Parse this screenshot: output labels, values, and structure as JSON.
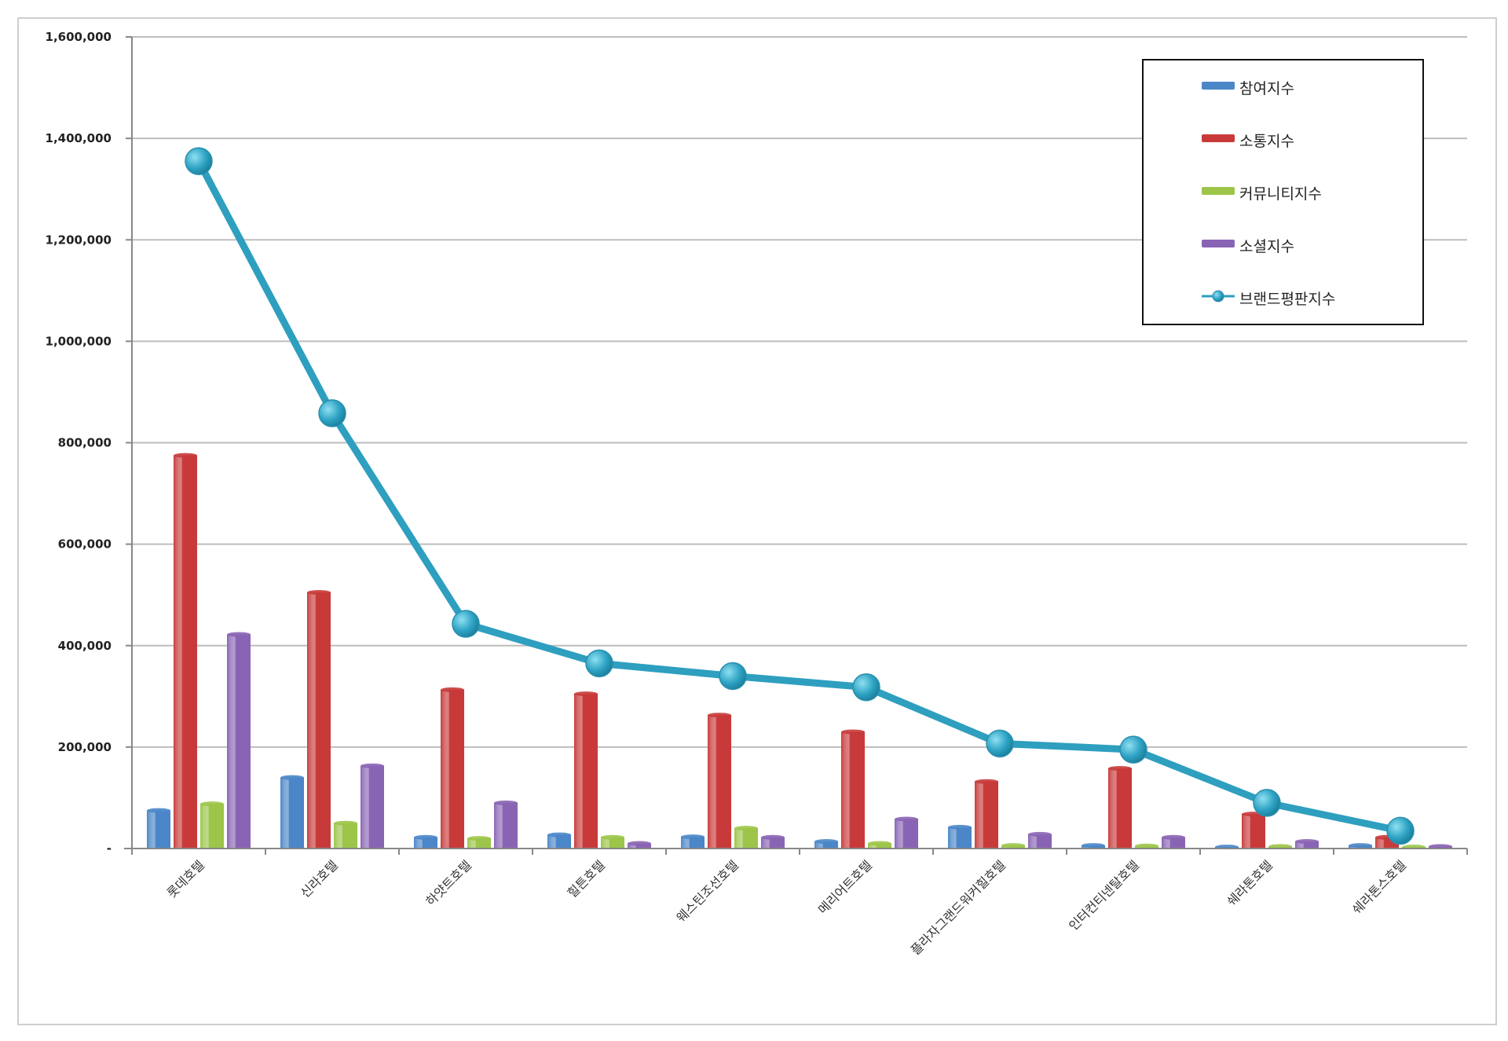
{
  "chart_data": {
    "type": "bar",
    "categories": [
      "롯데호텔",
      "신라호텔",
      "하얏트호텔",
      "힐튼호텔",
      "웨스틴조선호텔",
      "메리어트호텔",
      "플라자그랜드워커힐호텔",
      "인터컨티넨탈호텔",
      "쉐라톤호텔",
      "쉐라톤스호텔"
    ],
    "ylim": [
      0,
      1600000
    ],
    "yticks": [
      0,
      200000,
      400000,
      600000,
      800000,
      1000000,
      1200000,
      1400000,
      1600000
    ],
    "ytick_labels": [
      "-",
      "200,000",
      "400,000",
      "600,000",
      "800,000",
      "1,000,000",
      "1,200,000",
      "1,400,000",
      "1,600,000"
    ],
    "grid": true,
    "legend_position": "top-right",
    "series": [
      {
        "name": "참여지수",
        "kind": "bar",
        "color": "#4a86c8",
        "values": [
          75000,
          140000,
          22000,
          27000,
          23000,
          14000,
          42000,
          6000,
          3000,
          6000
        ]
      },
      {
        "name": "소통지수",
        "kind": "bar",
        "color": "#c83a3a",
        "values": [
          775000,
          505000,
          313000,
          305000,
          263000,
          230000,
          132000,
          158000,
          68000,
          22000
        ]
      },
      {
        "name": "커뮤니티지수",
        "kind": "bar",
        "color": "#9cc54a",
        "values": [
          88000,
          50000,
          20000,
          22000,
          40000,
          10000,
          6000,
          5000,
          4000,
          3000
        ]
      },
      {
        "name": "소셜지수",
        "kind": "bar",
        "color": "#8a64b4",
        "values": [
          422000,
          163000,
          90000,
          10000,
          22000,
          58000,
          28000,
          22000,
          14000,
          4000
        ]
      },
      {
        "name": "브랜드평판지수",
        "kind": "line",
        "color": "#2e9fbf",
        "values": [
          1355000,
          858000,
          443000,
          365000,
          340000,
          318000,
          207000,
          195000,
          90000,
          35000
        ]
      }
    ]
  }
}
